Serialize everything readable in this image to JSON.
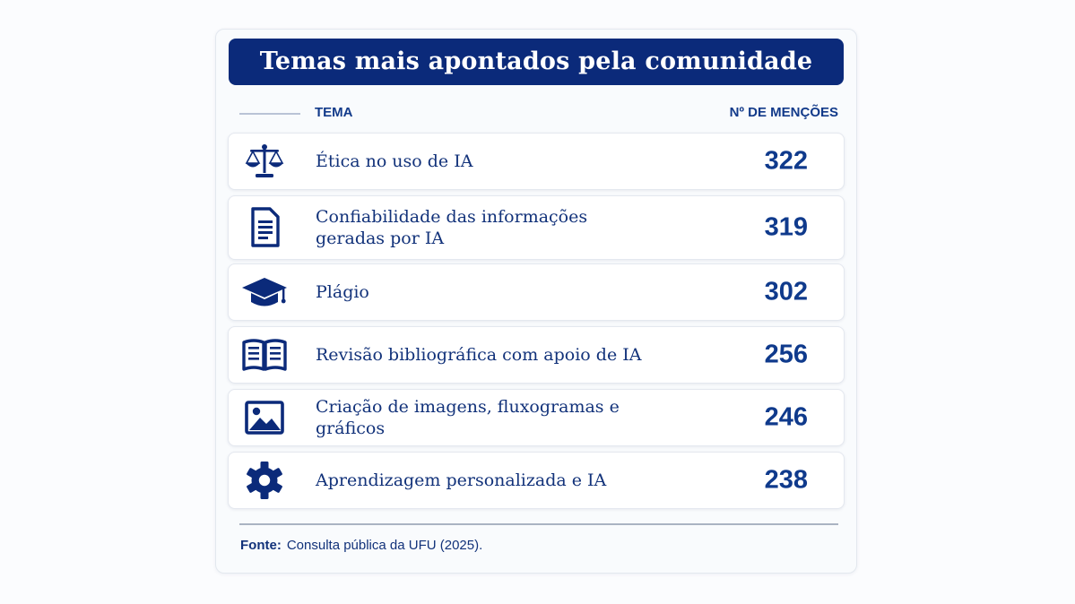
{
  "title": "Temas mais apontados pela comunidade",
  "columns": {
    "tema": "TEMA",
    "mencoes": "Nº DE MENÇÕES"
  },
  "chart_data": {
    "type": "table",
    "title": "Temas mais apontados pela comunidade",
    "columns": [
      "TEMA",
      "Nº DE MENÇÕES"
    ],
    "rows": [
      {
        "label": "Ética no uso de IA",
        "value": 322,
        "icon": "scales-icon"
      },
      {
        "label": "Confiabilidade das informações\ngeradas por IA",
        "value": 319,
        "icon": "document-icon"
      },
      {
        "label": "Plágio",
        "value": 302,
        "icon": "graduation-cap-icon"
      },
      {
        "label": "Revisão bibliográfica com apoio de IA",
        "value": 256,
        "icon": "open-book-icon"
      },
      {
        "label": "Criação de imagens, fluxogramas e gráficos",
        "value": 246,
        "icon": "image-icon"
      },
      {
        "label": "Aprendizagem personalizada e IA",
        "value": 238,
        "icon": "gear-icon"
      }
    ]
  },
  "source": {
    "label": "Fonte:",
    "text": "Consulta pública da UFU (2025)."
  },
  "colors": {
    "title_bg": "#0b2a7a",
    "text": "#12327a",
    "value": "#0f3a8c"
  }
}
